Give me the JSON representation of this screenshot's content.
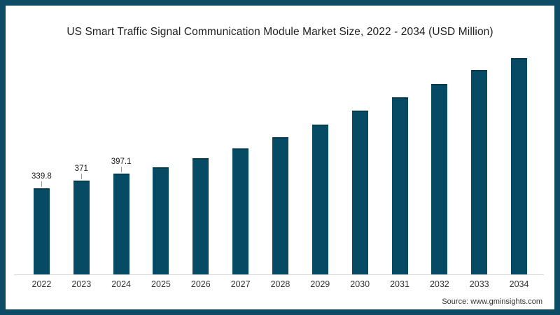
{
  "frame": {
    "border_color": "#0E4C66",
    "background_color": "#ffffff"
  },
  "chart_data": {
    "type": "bar",
    "title": "US Smart Traffic Signal Communication Module Market Size, 2022 - 2034 (USD Million)",
    "categories": [
      "2022",
      "2023",
      "2024",
      "2025",
      "2026",
      "2027",
      "2028",
      "2029",
      "2030",
      "2031",
      "2032",
      "2033",
      "2034"
    ],
    "values": [
      339.8,
      371,
      397.1,
      423,
      459,
      497,
      543,
      593,
      648,
      700,
      753,
      808,
      855
    ],
    "data_labels": [
      "339.8",
      "371",
      "397.1",
      "",
      "",
      "",
      "",
      "",
      "",
      "",
      "",
      "",
      ""
    ],
    "xlabel": "",
    "ylabel": "",
    "ylim": [
      0,
      900
    ],
    "grid": false,
    "legend": false,
    "bar_color": "#074A63",
    "axis_line_color": "#d8d8d8",
    "label_color": "#1a1a1a",
    "tick_color": "#333333"
  },
  "source": {
    "label": "Source: www.gminsights.com"
  }
}
